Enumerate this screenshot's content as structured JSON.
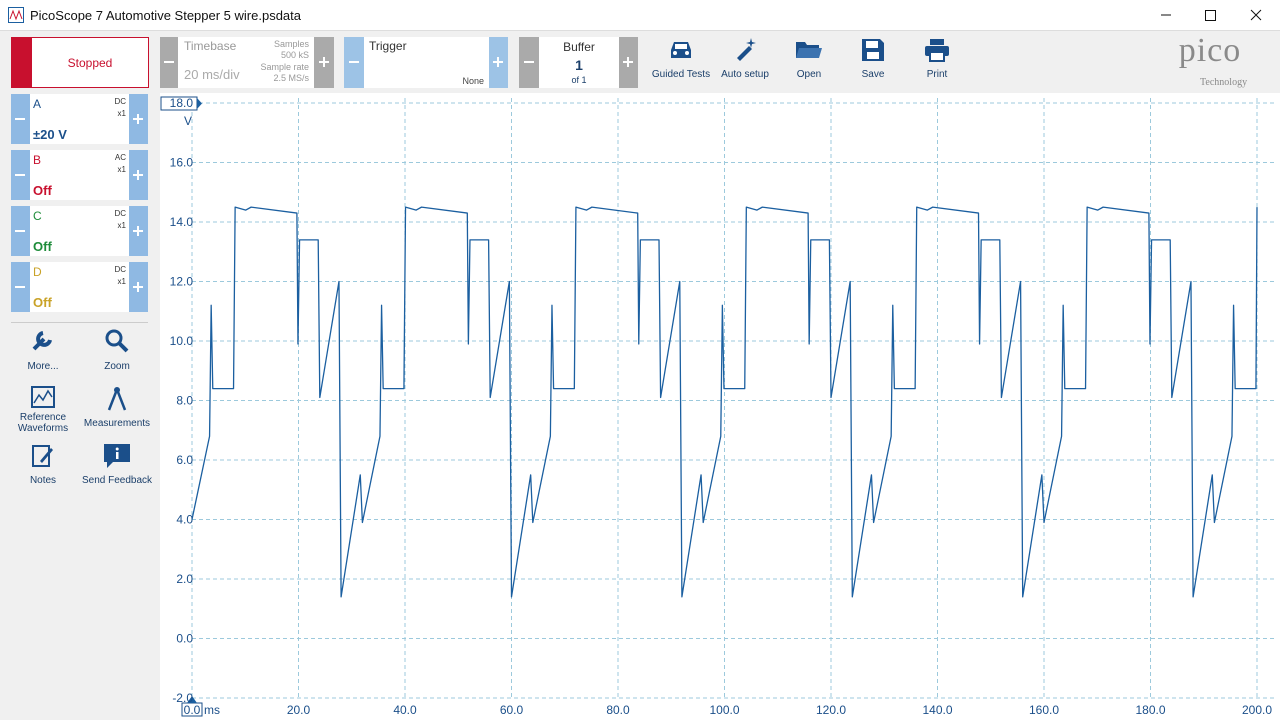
{
  "window": {
    "title": "PicoScope 7 Automotive Stepper 5 wire.psdata"
  },
  "toolbar": {
    "status": "Stopped",
    "timebase": {
      "label": "Timebase",
      "value": "20 ms/div",
      "samples_label": "Samples",
      "samples": "500 kS",
      "rate_label": "Sample rate",
      "rate": "2.5 MS/s"
    },
    "trigger": {
      "label": "Trigger",
      "mode": "None"
    },
    "buffer": {
      "label": "Buffer",
      "value": "1",
      "of": "of 1"
    },
    "buttons": [
      "Guided Tests",
      "Auto setup",
      "Open",
      "Save",
      "Print"
    ],
    "logo": {
      "brand": "pico",
      "tagline": "Technology"
    }
  },
  "channels": [
    {
      "name": "A",
      "coupling": "DC",
      "probe": "x1",
      "range": "±20 V",
      "color": "#1b4f8a"
    },
    {
      "name": "B",
      "coupling": "AC",
      "probe": "x1",
      "range": "Off",
      "color": "#c8102e"
    },
    {
      "name": "C",
      "coupling": "DC",
      "probe": "x1",
      "range": "Off",
      "color": "#1e8c3a"
    },
    {
      "name": "D",
      "coupling": "DC",
      "probe": "x1",
      "range": "Off",
      "color": "#c9a227"
    }
  ],
  "tools": [
    "More...",
    "Zoom",
    "Reference Waveforms",
    "Measurements",
    "Notes",
    "Send Feedback"
  ],
  "chart_data": {
    "type": "line",
    "x_label": "ms",
    "y_label": "V",
    "xlim": [
      0,
      200
    ],
    "ylim": [
      -2,
      18
    ],
    "grid": true,
    "xticks": [
      {
        "value": 0,
        "label": "0.0"
      },
      {
        "value": 20,
        "label": "20.0"
      },
      {
        "value": 40,
        "label": "40.0"
      },
      {
        "value": 60,
        "label": "60.0"
      },
      {
        "value": 80,
        "label": "80.0"
      },
      {
        "value": 100,
        "label": "100.0"
      },
      {
        "value": 120,
        "label": "120.0"
      },
      {
        "value": 140,
        "label": "140.0"
      },
      {
        "value": 160,
        "label": "160.0"
      },
      {
        "value": 180,
        "label": "180.0"
      },
      {
        "value": 200,
        "label": "200.0"
      }
    ],
    "yticks": [
      {
        "value": -2,
        "label": "-2.0"
      },
      {
        "value": 0,
        "label": "0.0"
      },
      {
        "value": 2,
        "label": "2.0"
      },
      {
        "value": 4,
        "label": "4.0"
      },
      {
        "value": 6,
        "label": "6.0"
      },
      {
        "value": 8,
        "label": "8.0"
      },
      {
        "value": 10,
        "label": "10.0"
      },
      {
        "value": 12,
        "label": "12.0"
      },
      {
        "value": 14,
        "label": "14.0"
      },
      {
        "value": 16,
        "label": "16.0"
      },
      {
        "value": 18,
        "label": "18.0"
      }
    ],
    "x": [
      0,
      3.3,
      3.6,
      3.9,
      7.8,
      8.1,
      10.1,
      11.1,
      19.7,
      19.9,
      20.2,
      23.7,
      24.0,
      27.6,
      28.0,
      31.6,
      32.0,
      35.3,
      35.6,
      35.9,
      39.8,
      40.1,
      42.1,
      43.1,
      51.7,
      51.9,
      52.2,
      55.7,
      56.0,
      59.6,
      60.0,
      63.6,
      64.0,
      67.3,
      67.6,
      67.9,
      71.8,
      72.1,
      74.1,
      75.1,
      83.7,
      83.9,
      84.2,
      87.7,
      88.0,
      91.6,
      92.0,
      95.6,
      96.0,
      99.3,
      99.6,
      99.9,
      103.8,
      104.1,
      106.1,
      107.1,
      115.7,
      115.9,
      116.2,
      119.7,
      120.0,
      123.6,
      124.0,
      127.6,
      128.0,
      131.3,
      131.6,
      131.9,
      135.8,
      136.1,
      138.1,
      139.1,
      147.7,
      147.9,
      148.2,
      151.7,
      152.0,
      155.6,
      156.0,
      159.6,
      160.0,
      163.3,
      163.6,
      163.9,
      167.8,
      168.1,
      170.1,
      171.1,
      179.7,
      179.9,
      180.2,
      183.7,
      184.0,
      187.6,
      188.0,
      191.6,
      192.0,
      195.3,
      195.6,
      195.9,
      199.8,
      200.0
    ],
    "series": [
      {
        "color": "#1b5fa0",
        "values": [
          4.0,
          6.8,
          11.2,
          8.4,
          8.4,
          14.5,
          14.4,
          14.5,
          14.3,
          9.9,
          13.4,
          13.4,
          8.1,
          12.0,
          1.4,
          5.5,
          3.9,
          6.8,
          11.2,
          8.4,
          8.4,
          14.5,
          14.4,
          14.5,
          14.3,
          9.9,
          13.4,
          13.4,
          8.1,
          12.0,
          1.4,
          5.5,
          3.9,
          6.8,
          11.2,
          8.4,
          8.4,
          14.5,
          14.4,
          14.5,
          14.3,
          9.9,
          13.4,
          13.4,
          8.1,
          12.0,
          1.4,
          5.5,
          3.9,
          6.8,
          11.2,
          8.4,
          8.4,
          14.5,
          14.4,
          14.5,
          14.3,
          9.9,
          13.4,
          13.4,
          8.1,
          12.0,
          1.4,
          5.5,
          3.9,
          6.8,
          11.2,
          8.4,
          8.4,
          14.5,
          14.4,
          14.5,
          14.3,
          9.9,
          13.4,
          13.4,
          8.1,
          12.0,
          1.4,
          5.5,
          3.9,
          6.8,
          11.2,
          8.4,
          8.4,
          14.5,
          14.4,
          14.5,
          14.3,
          9.9,
          13.4,
          13.4,
          8.1,
          12.0,
          1.4,
          5.5,
          3.9,
          6.8,
          11.2,
          8.4,
          8.4,
          14.5
        ]
      }
    ]
  }
}
